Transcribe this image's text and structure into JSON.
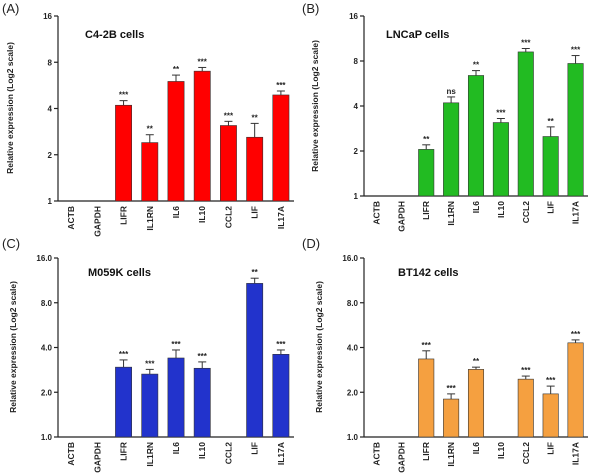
{
  "chart_data": [
    {
      "type": "bar",
      "panel": "(A)",
      "title": "C4-2B cells",
      "ylabel": "Relative expression (Log2 scale)",
      "yscale": "log2",
      "ylim": [
        1,
        16
      ],
      "yticks": [
        1,
        2,
        4,
        8,
        16
      ],
      "ytick_labels": [
        "1",
        "2",
        "4",
        "8",
        "16"
      ],
      "color": "#ff0000",
      "categories": [
        "ACTB",
        "GAPDH",
        "LIFR",
        "IL1RN",
        "IL6",
        "IL10",
        "CCL2",
        "LIF",
        "IL17A"
      ],
      "values": [
        null,
        null,
        4.2,
        2.4,
        6.0,
        7.0,
        3.1,
        2.6,
        4.9
      ],
      "errors": [
        0,
        0,
        0.3,
        0.3,
        0.6,
        0.4,
        0.2,
        0.6,
        0.3
      ],
      "significance": [
        "",
        "",
        "***",
        "**",
        "**",
        "***",
        "***",
        "**",
        "***"
      ]
    },
    {
      "type": "bar",
      "panel": "(B)",
      "title": "LNCaP cells",
      "ylabel": "Relative expression (Log2 scale)",
      "yscale": "log2",
      "ylim": [
        1,
        16
      ],
      "yticks": [
        1,
        2,
        4,
        8,
        16
      ],
      "ytick_labels": [
        "1",
        "2",
        "4",
        "8",
        "16"
      ],
      "color": "#22bb22",
      "categories": [
        "ACTB",
        "GAPDH",
        "LIFR",
        "IL1RN",
        "IL6",
        "IL10",
        "CCL2",
        "LIF",
        "IL17A"
      ],
      "values": [
        null,
        null,
        2.05,
        4.2,
        6.4,
        3.1,
        9.2,
        2.5,
        7.7
      ],
      "errors": [
        0,
        0,
        0.15,
        0.4,
        0.5,
        0.2,
        0.5,
        0.4,
        1.0
      ],
      "significance": [
        "",
        "",
        "**",
        "ns",
        "**",
        "***",
        "***",
        "**",
        "***"
      ]
    },
    {
      "type": "bar",
      "panel": "(C)",
      "title": "M059K cells",
      "ylabel": "Relative expression (Log2 scale)",
      "yscale": "log2",
      "ylim": [
        1,
        16
      ],
      "yticks": [
        1,
        2,
        4,
        8,
        16
      ],
      "ytick_labels": [
        "1.0",
        "2.0",
        "4.0",
        "8.0",
        "16.0"
      ],
      "color": "#2233cc",
      "categories": [
        "ACTB",
        "GAPDH",
        "LIFR",
        "IL1RN",
        "IL6",
        "IL10",
        "CCL2",
        "LIF",
        "IL17A"
      ],
      "values": [
        null,
        null,
        2.95,
        2.65,
        3.4,
        2.9,
        null,
        10.8,
        3.6
      ],
      "errors": [
        0,
        0,
        0.35,
        0.2,
        0.45,
        0.3,
        0,
        0.9,
        0.25
      ],
      "significance": [
        "",
        "",
        "***",
        "***",
        "***",
        "***",
        "",
        "**",
        "***"
      ]
    },
    {
      "type": "bar",
      "panel": "(D)",
      "title": "BT142 cells",
      "ylabel": "Relative expression (Log2 scale)",
      "yscale": "log2",
      "ylim": [
        1,
        16
      ],
      "yticks": [
        1,
        2,
        4,
        8,
        16
      ],
      "ytick_labels": [
        "1.0",
        "2.0",
        "4.0",
        "8.0",
        "16.0"
      ],
      "color": "#f5a040",
      "categories": [
        "ACTB",
        "GAPDH",
        "LIFR",
        "IL1RN",
        "IL6",
        "IL10",
        "CCL2",
        "LIF",
        "IL17A"
      ],
      "values": [
        null,
        null,
        3.35,
        1.8,
        2.85,
        null,
        2.45,
        1.95,
        4.3
      ],
      "errors": [
        0,
        0,
        0.45,
        0.15,
        0.1,
        0,
        0.12,
        0.25,
        0.2
      ],
      "significance": [
        "",
        "",
        "***",
        "***",
        "**",
        "",
        "***",
        "***",
        "***"
      ]
    }
  ]
}
